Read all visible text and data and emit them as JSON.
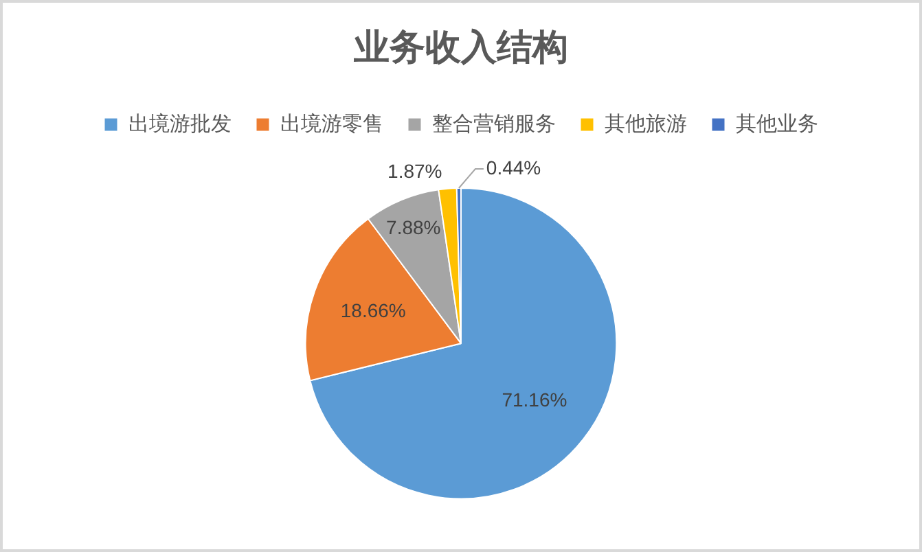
{
  "chart_data": {
    "type": "pie",
    "title": "业务收入结构",
    "categories": [
      "出境游批发",
      "出境游零售",
      "整合营销服务",
      "其他旅游",
      "其他业务"
    ],
    "values": [
      71.16,
      18.66,
      7.88,
      1.87,
      0.44
    ],
    "colors": [
      "#5b9bd5",
      "#ed7d31",
      "#a5a5a5",
      "#ffc000",
      "#4472c4"
    ],
    "value_labels": [
      "71.16%",
      "18.66%",
      "7.88%",
      "1.87%",
      "0.44%"
    ],
    "legend": "top"
  }
}
